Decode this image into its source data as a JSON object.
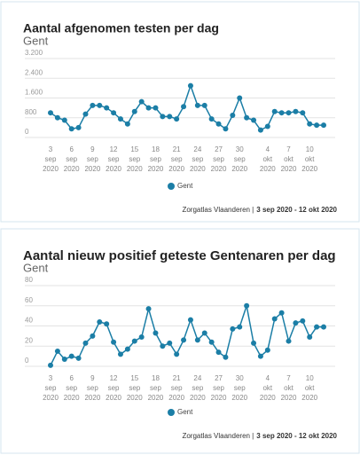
{
  "chart_data": [
    {
      "type": "line",
      "title": "Aantal afgenomen testen per dag",
      "subtitle": "Gent",
      "categories": [
        [
          "3",
          "sep",
          "2020"
        ],
        null,
        null,
        [
          "6",
          "sep",
          "2020"
        ],
        null,
        null,
        [
          "9",
          "sep",
          "2020"
        ],
        null,
        null,
        [
          "12",
          "sep",
          "2020"
        ],
        null,
        null,
        [
          "15",
          "sep",
          "2020"
        ],
        null,
        null,
        [
          "18",
          "sep",
          "2020"
        ],
        null,
        null,
        [
          "21",
          "sep",
          "2020"
        ],
        null,
        null,
        [
          "24",
          "sep",
          "2020"
        ],
        null,
        null,
        [
          "27",
          "sep",
          "2020"
        ],
        null,
        null,
        [
          "30",
          "sep",
          "2020"
        ],
        null,
        null,
        null,
        [
          "4",
          "okt",
          "2020"
        ],
        null,
        null,
        [
          "7",
          "okt",
          "2020"
        ],
        null,
        null,
        [
          "10",
          "okt",
          "2020"
        ],
        null,
        null
      ],
      "series": [
        {
          "name": "Gent",
          "color": "#1b7ea6",
          "values": [
            1000,
            800,
            700,
            350,
            400,
            950,
            1300,
            1300,
            1200,
            1000,
            750,
            550,
            1050,
            1450,
            1200,
            1200,
            850,
            850,
            750,
            1250,
            2100,
            1300,
            1300,
            750,
            550,
            350,
            900,
            1600,
            800,
            700,
            300,
            450,
            1050,
            1000,
            1000,
            1050,
            1000,
            550,
            500,
            500
          ]
        }
      ],
      "ylim": [
        0,
        3200
      ],
      "yticks": [
        0,
        800,
        {
          "value": 1600,
          "label": "1.600"
        },
        {
          "value": 2400,
          "label": "2.400"
        },
        {
          "value": 3200,
          "label": "3.200"
        }
      ],
      "grid": true,
      "source": "Zorgatlas Vlaanderen |",
      "period": "3 sep 2020 - 12 okt 2020"
    },
    {
      "type": "line",
      "title": "Aantal nieuw positief geteste Gentenaren per dag",
      "subtitle": "Gent",
      "categories": [
        [
          "3",
          "sep",
          "2020"
        ],
        null,
        null,
        [
          "6",
          "sep",
          "2020"
        ],
        null,
        null,
        [
          "9",
          "sep",
          "2020"
        ],
        null,
        null,
        [
          "12",
          "sep",
          "2020"
        ],
        null,
        null,
        [
          "15",
          "sep",
          "2020"
        ],
        null,
        null,
        [
          "18",
          "sep",
          "2020"
        ],
        null,
        null,
        [
          "21",
          "sep",
          "2020"
        ],
        null,
        null,
        [
          "24",
          "sep",
          "2020"
        ],
        null,
        null,
        [
          "27",
          "sep",
          "2020"
        ],
        null,
        null,
        [
          "30",
          "sep",
          "2020"
        ],
        null,
        null,
        null,
        [
          "4",
          "okt",
          "2020"
        ],
        null,
        null,
        [
          "7",
          "okt",
          "2020"
        ],
        null,
        null,
        [
          "10",
          "okt",
          "2020"
        ],
        null,
        null
      ],
      "series": [
        {
          "name": "Gent",
          "color": "#1b7ea6",
          "values": [
            1,
            15,
            7,
            10,
            8,
            23,
            30,
            44,
            42,
            24,
            12,
            17,
            25,
            29,
            57,
            33,
            20,
            23,
            12,
            26,
            46,
            26,
            33,
            24,
            14,
            9,
            37,
            39,
            60,
            23,
            10,
            16,
            47,
            53,
            25,
            43,
            45,
            29,
            39,
            39
          ]
        }
      ],
      "ylim": [
        0,
        80
      ],
      "yticks": [
        0,
        20,
        40,
        60,
        80
      ],
      "grid": true,
      "source": "Zorgatlas Vlaanderen |",
      "period": "3 sep 2020 - 12 okt 2020"
    }
  ]
}
